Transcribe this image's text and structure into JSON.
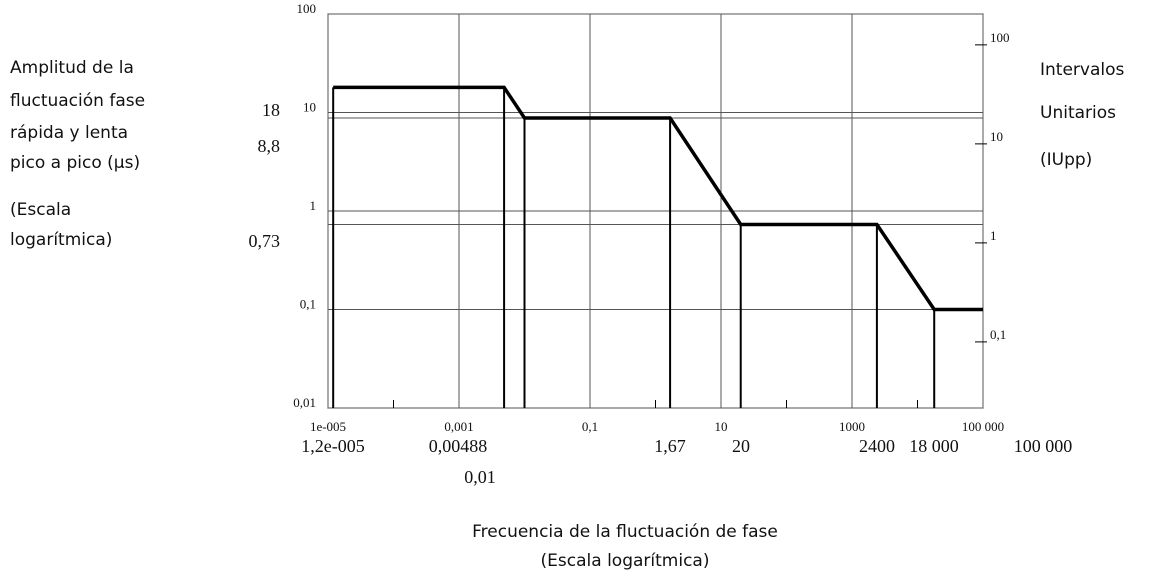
{
  "chart_data": {
    "type": "line",
    "y_label": [
      "Amplitud de la",
      "fluctuación  fase",
      "rápida y lenta",
      "pico a pico  (µs)"
    ],
    "y_label_note": [
      "(Escala",
      "logarítmica)"
    ],
    "y2_label": [
      "Intervalos",
      "Unitarios",
      "(IUpp)"
    ],
    "x_label": [
      "Frecuencia de la fluctuación de fase",
      "(Escala  logarítmica)"
    ],
    "x_log": true,
    "y_log": true,
    "grid": true,
    "xlim": [
      1e-05,
      100000
    ],
    "ylim": [
      0.01,
      100
    ],
    "y2lim": [
      0.0215,
      205
    ],
    "xticks": [
      {
        "value": 1e-05,
        "label": "1e-005"
      },
      {
        "value": 0.001,
        "label": "0,001"
      },
      {
        "value": 0.1,
        "label": "0,1"
      },
      10,
      1000,
      {
        "value": 100000,
        "label": "100 000"
      }
    ],
    "xminor": [
      0.0001,
      0.01,
      1,
      100,
      10000
    ],
    "yticks": [
      {
        "value": 0.01,
        "label": "0,01"
      },
      {
        "value": 0.1,
        "label": "0,1"
      },
      1,
      10,
      100
    ],
    "y2ticks": [
      {
        "value": 0.1,
        "label": "0,1"
      },
      1,
      10,
      100
    ],
    "series": [
      {
        "color": "#000000",
        "x": [
          1.2e-05,
          0.00488,
          0.01,
          1.67,
          20,
          2400,
          18000,
          100000
        ],
        "values": [
          18,
          18,
          8.8,
          8.8,
          0.73,
          0.73,
          0.1,
          0.1
        ]
      }
    ],
    "x_mask_labels": [
      "1,2e-005",
      "0,00488",
      "0,01",
      "1,67",
      "20",
      "2400",
      "18 000",
      "100 000"
    ],
    "y_mask_labels": [
      "18",
      "8,8",
      "0,73"
    ],
    "reference_levels": [
      8.8,
      0.73
    ]
  }
}
